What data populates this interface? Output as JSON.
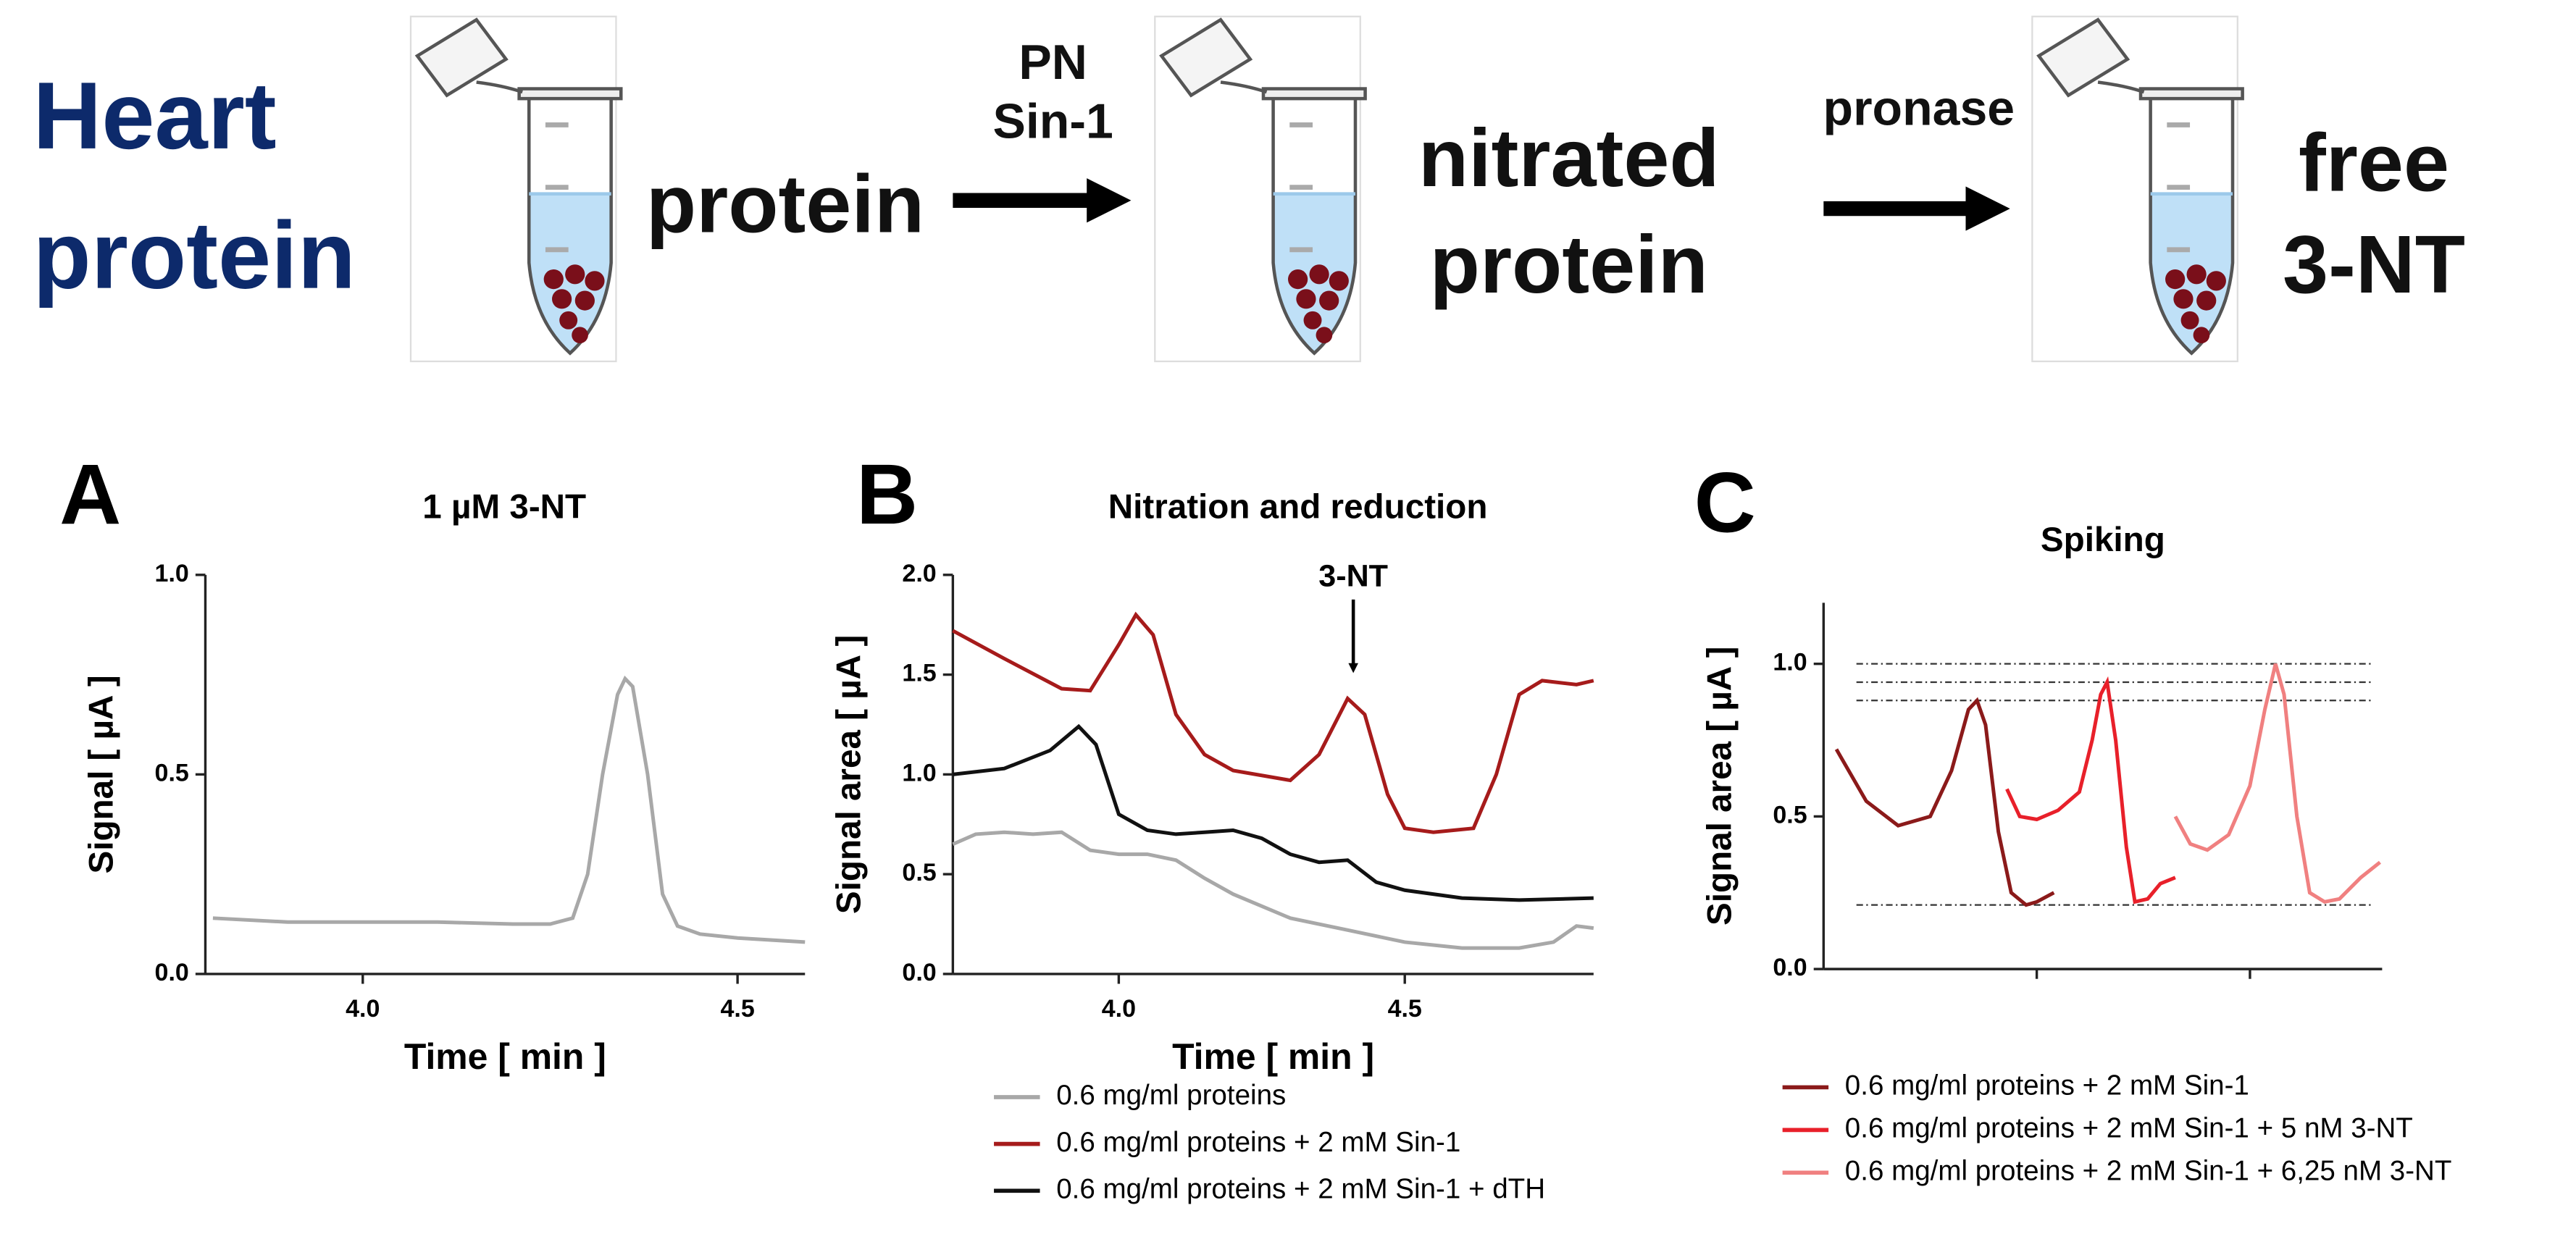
{
  "scheme": {
    "start": [
      "Heart",
      "protein"
    ],
    "step1": "protein",
    "reagent1": [
      "PN",
      "Sin-1"
    ],
    "step2": [
      "nitrated",
      "protein"
    ],
    "reagent2": "pronase",
    "step3": [
      "free",
      "3-NT"
    ]
  },
  "chart_data": [
    {
      "type": "line",
      "panel": "A",
      "title": "1 µM 3-NT",
      "xlabel": "Time [ min ]",
      "ylabel": "Signal [ µA ]",
      "xlim": [
        3.79,
        4.59
      ],
      "xticks": [
        {
          "value": 4,
          "label": "4.0"
        },
        4.5
      ],
      "ylim": [
        0,
        1
      ],
      "yticks": [
        {
          "value": 0,
          "label": "0.0"
        },
        0.5,
        {
          "value": 1,
          "label": "1.0"
        }
      ],
      "series": [
        {
          "color": "#a8a8a8",
          "x": [
            3.8,
            3.9,
            4.0,
            4.1,
            4.2,
            4.25,
            4.28,
            4.3,
            4.32,
            4.34,
            4.35,
            4.36,
            4.38,
            4.4,
            4.42,
            4.45,
            4.5,
            4.59
          ],
          "values": [
            0.14,
            0.13,
            0.13,
            0.13,
            0.125,
            0.125,
            0.14,
            0.25,
            0.5,
            0.7,
            0.74,
            0.72,
            0.5,
            0.2,
            0.12,
            0.1,
            0.09,
            0.08
          ]
        }
      ]
    },
    {
      "type": "line",
      "panel": "B",
      "title": "Nitration and reduction",
      "xlabel": "Time [ min ]",
      "ylabel": "Signal area [ µA ]",
      "xlim": [
        3.71,
        4.83
      ],
      "xticks": [
        {
          "value": 4,
          "label": "4.0"
        },
        4.5
      ],
      "ylim": [
        0,
        2
      ],
      "yticks": [
        {
          "value": 0,
          "label": "0.0"
        },
        0.5,
        {
          "value": 1,
          "label": "1.0"
        },
        1.5,
        {
          "value": 2,
          "label": "2.0"
        }
      ],
      "annotations": [
        {
          "text": "3-NT",
          "x": 4.41,
          "y": 1.5
        }
      ],
      "series": [
        {
          "name": "0.6 mg/ml proteins",
          "color": "#a8a8a8",
          "x": [
            3.71,
            3.75,
            3.8,
            3.85,
            3.9,
            3.95,
            4.0,
            4.05,
            4.1,
            4.15,
            4.2,
            4.3,
            4.4,
            4.5,
            4.6,
            4.7,
            4.76,
            4.8,
            4.83
          ],
          "values": [
            0.65,
            0.7,
            0.71,
            0.7,
            0.71,
            0.62,
            0.6,
            0.6,
            0.57,
            0.48,
            0.4,
            0.28,
            0.22,
            0.16,
            0.13,
            0.13,
            0.16,
            0.24,
            0.23
          ]
        },
        {
          "name": "0.6 mg/ml proteins + 2 mM Sin-1",
          "color": "#a61b1b",
          "x": [
            3.71,
            3.8,
            3.9,
            3.95,
            4.0,
            4.03,
            4.06,
            4.1,
            4.15,
            4.2,
            4.3,
            4.35,
            4.4,
            4.43,
            4.47,
            4.5,
            4.55,
            4.62,
            4.66,
            4.7,
            4.74,
            4.8,
            4.83
          ],
          "values": [
            1.72,
            1.58,
            1.43,
            1.42,
            1.65,
            1.8,
            1.7,
            1.3,
            1.1,
            1.02,
            0.97,
            1.1,
            1.38,
            1.3,
            0.9,
            0.73,
            0.71,
            0.73,
            1.0,
            1.4,
            1.47,
            1.45,
            1.47
          ]
        },
        {
          "name": "0.6 mg/ml proteins + 2 mM Sin-1 + dTH",
          "color": "#111111",
          "x": [
            3.71,
            3.8,
            3.88,
            3.93,
            3.96,
            4.0,
            4.05,
            4.1,
            4.15,
            4.2,
            4.25,
            4.3,
            4.35,
            4.4,
            4.45,
            4.5,
            4.6,
            4.7,
            4.83
          ],
          "values": [
            1.0,
            1.03,
            1.12,
            1.24,
            1.15,
            0.8,
            0.72,
            0.7,
            0.71,
            0.72,
            0.68,
            0.6,
            0.56,
            0.57,
            0.46,
            0.42,
            0.38,
            0.37,
            0.38
          ]
        }
      ]
    },
    {
      "type": "line",
      "panel": "C",
      "title": "Spiking",
      "ylabel": "Signal area [ µA ]",
      "xlim": [
        0,
        2.62
      ],
      "xticks": [
        1,
        2
      ],
      "show_xtick_labels": false,
      "ylim": [
        0,
        1.2
      ],
      "yticks": [
        {
          "value": 0,
          "label": "0.0"
        },
        0.5,
        {
          "value": 1,
          "label": "1.0"
        }
      ],
      "reference_lines": [
        1.0,
        0.94,
        0.88,
        0.21
      ],
      "series": [
        {
          "name": "0.6 mg/ml proteins + 2 mM Sin-1",
          "color": "#8b1a1a",
          "x": [
            0.06,
            0.2,
            0.35,
            0.5,
            0.6,
            0.68,
            0.72,
            0.76,
            0.82,
            0.88,
            0.95,
            1.0,
            1.08
          ],
          "values": [
            0.72,
            0.55,
            0.47,
            0.5,
            0.65,
            0.85,
            0.88,
            0.8,
            0.45,
            0.25,
            0.21,
            0.22,
            0.25
          ]
        },
        {
          "name": "0.6 mg/ml proteins + 2 mM Sin-1 + 5 nM 3-NT",
          "color": "#e8202a",
          "x": [
            0.86,
            0.92,
            1.0,
            1.1,
            1.2,
            1.26,
            1.3,
            1.33,
            1.37,
            1.42,
            1.46,
            1.52,
            1.58,
            1.65
          ],
          "values": [
            0.59,
            0.5,
            0.49,
            0.52,
            0.58,
            0.75,
            0.9,
            0.94,
            0.75,
            0.4,
            0.22,
            0.23,
            0.28,
            0.3
          ]
        },
        {
          "name": "0.6 mg/ml proteins + 2 mM Sin-1 + 6,25 nM 3-NT",
          "color": "#f08080",
          "x": [
            1.65,
            1.72,
            1.8,
            1.9,
            2.0,
            2.07,
            2.12,
            2.16,
            2.22,
            2.28,
            2.35,
            2.42,
            2.52,
            2.61
          ],
          "values": [
            0.5,
            0.41,
            0.39,
            0.44,
            0.6,
            0.85,
            1.0,
            0.9,
            0.5,
            0.25,
            0.22,
            0.23,
            0.3,
            0.35
          ]
        }
      ]
    }
  ]
}
